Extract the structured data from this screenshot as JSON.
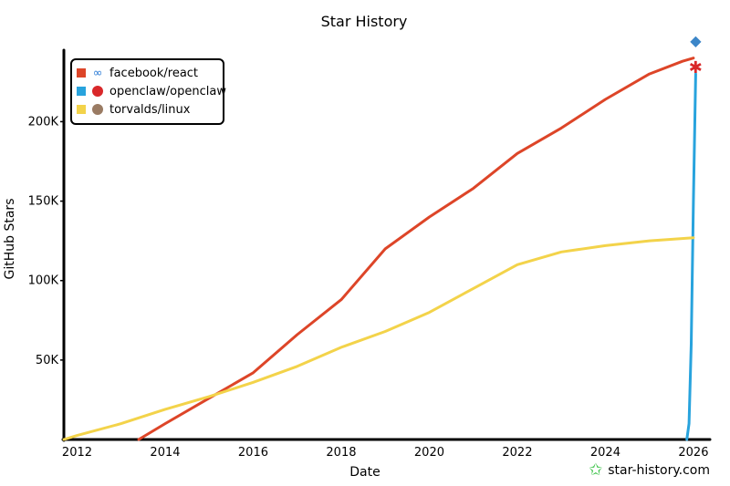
{
  "chart_data": {
    "type": "line",
    "title": "Star History",
    "xlabel": "Date",
    "ylabel": "GitHub Stars",
    "x_ticks": [
      "2012",
      "2014",
      "2016",
      "2018",
      "2020",
      "2022",
      "2024",
      "2026"
    ],
    "y_ticks": [
      "50K",
      "100K",
      "150K",
      "200K"
    ],
    "xlim": [
      2011.7,
      2026.25
    ],
    "ylim": [
      0,
      245000
    ],
    "legend_position": "top-left",
    "series": [
      {
        "name": "facebook/react",
        "color": "#dd4528",
        "icon": "react-infinity-icon",
        "points": [
          [
            2013.4,
            0
          ],
          [
            2014.0,
            10000
          ],
          [
            2015.0,
            26000
          ],
          [
            2016.0,
            42000
          ],
          [
            2017.0,
            66000
          ],
          [
            2018.0,
            88000
          ],
          [
            2019.0,
            120000
          ],
          [
            2020.0,
            140000
          ],
          [
            2021.0,
            158000
          ],
          [
            2022.0,
            180000
          ],
          [
            2023.0,
            196000
          ],
          [
            2024.0,
            214000
          ],
          [
            2025.0,
            230000
          ],
          [
            2025.75,
            238000
          ],
          [
            2026.0,
            240000
          ]
        ]
      },
      {
        "name": "openclaw/openclaw",
        "color": "#28a3dd",
        "icon": "lobster-icon",
        "points": [
          [
            2025.85,
            0
          ],
          [
            2025.9,
            10000
          ],
          [
            2025.95,
            60000
          ],
          [
            2026.0,
            150000
          ],
          [
            2026.05,
            230000
          ]
        ]
      },
      {
        "name": "torvalds/linux",
        "color": "#f3d34a",
        "icon": "avatar-icon",
        "points": [
          [
            2011.7,
            0
          ],
          [
            2012.0,
            2500
          ],
          [
            2013.0,
            10000
          ],
          [
            2014.0,
            19000
          ],
          [
            2015.0,
            27000
          ],
          [
            2016.0,
            36000
          ],
          [
            2017.0,
            46000
          ],
          [
            2018.0,
            58000
          ],
          [
            2019.0,
            68000
          ],
          [
            2020.0,
            80000
          ],
          [
            2021.0,
            95000
          ],
          [
            2022.0,
            110000
          ],
          [
            2023.0,
            118000
          ],
          [
            2024.0,
            122000
          ],
          [
            2025.0,
            125000
          ],
          [
            2026.0,
            127000
          ]
        ]
      }
    ],
    "end_markers": [
      "fish-icon",
      "lobster-icon"
    ]
  },
  "watermark": "star-history.com"
}
